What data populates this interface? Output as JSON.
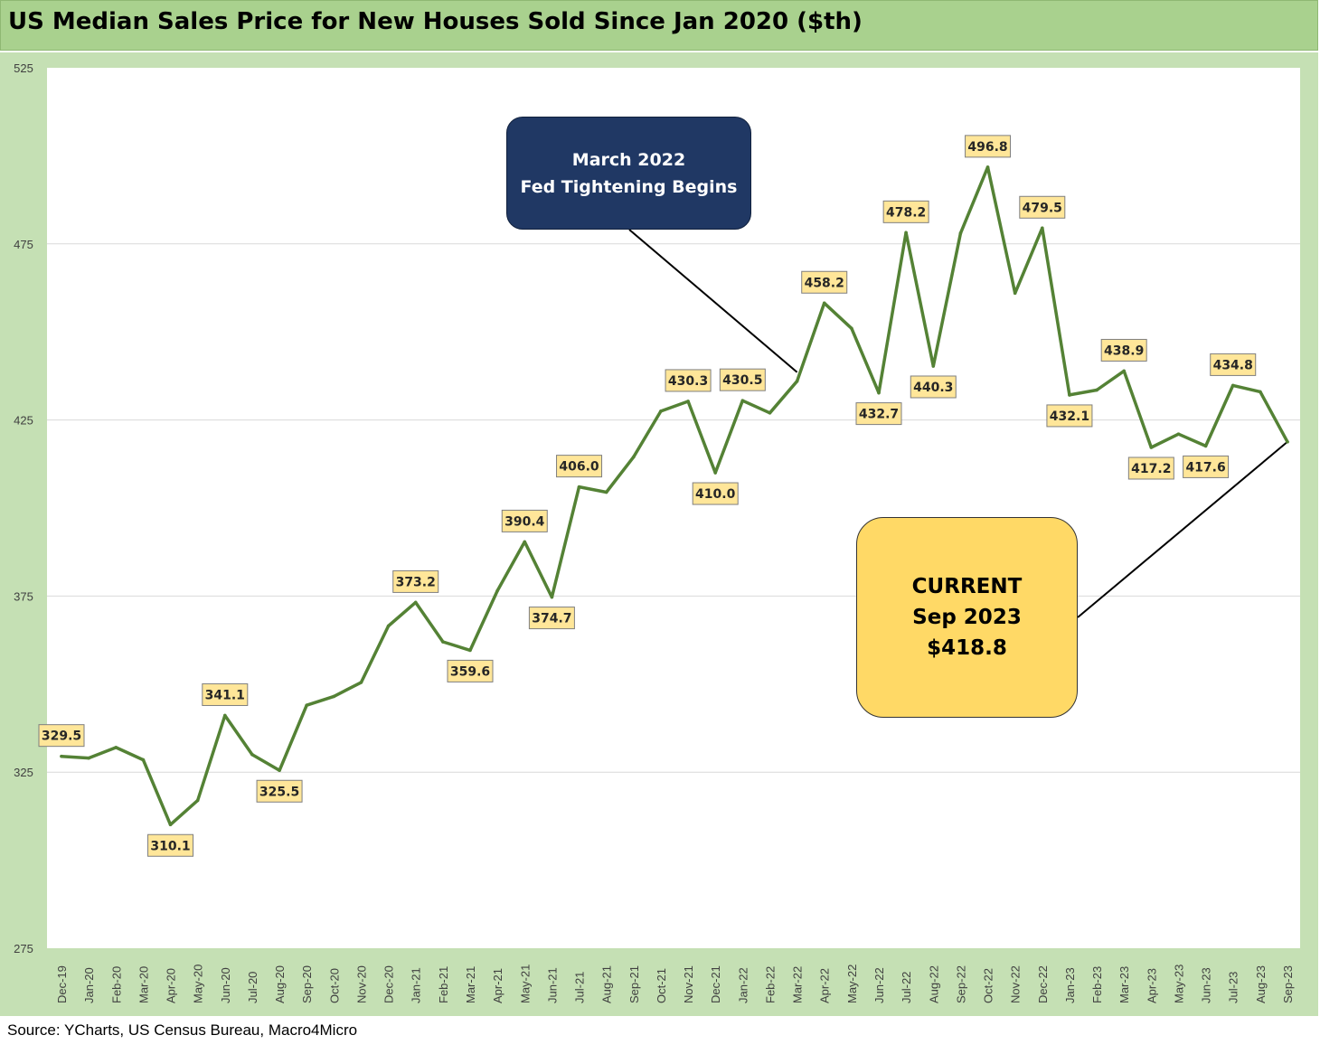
{
  "title": "US Median Sales Price for New Houses Sold Since Jan 2020 ($th)",
  "source": "Source: YCharts, US Census Bureau, Macro4Micro",
  "colors": {
    "title_bg": "#a9d18e",
    "frame_bg": "#c5e0b4",
    "line": "#548235",
    "label_bg": "#ffe699",
    "fed_box": "#203864",
    "current_box": "#ffd966"
  },
  "annotations": {
    "fed": {
      "line1": "March 2022",
      "line2": "Fed Tightening Begins",
      "points_to": "Mar-22"
    },
    "current": {
      "line1": "CURRENT",
      "line2": "Sep 2023",
      "line3": "$418.8",
      "points_to": "Sep-23"
    }
  },
  "chart_data": {
    "type": "line",
    "title": "US Median Sales Price for New Houses Sold Since Jan 2020 ($th)",
    "xlabel": "",
    "ylabel": "",
    "ylim": [
      275,
      525
    ],
    "yticks": [
      275,
      325,
      375,
      425,
      475,
      525
    ],
    "grid": true,
    "legend": "none",
    "categories": [
      "Dec-19",
      "Jan-20",
      "Feb-20",
      "Mar-20",
      "Apr-20",
      "May-20",
      "Jun-20",
      "Jul-20",
      "Aug-20",
      "Sep-20",
      "Oct-20",
      "Nov-20",
      "Dec-20",
      "Jan-21",
      "Feb-21",
      "Mar-21",
      "Apr-21",
      "May-21",
      "Jun-21",
      "Jul-21",
      "Aug-21",
      "Sep-21",
      "Oct-21",
      "Nov-21",
      "Dec-21",
      "Jan-22",
      "Feb-22",
      "Mar-22",
      "Apr-22",
      "May-22",
      "Jun-22",
      "Jul-22",
      "Aug-22",
      "Sep-22",
      "Oct-22",
      "Nov-22",
      "Dec-22",
      "Jan-23",
      "Feb-23",
      "Mar-23",
      "Apr-23",
      "May-23",
      "Jun-23",
      "Jul-23",
      "Aug-23",
      "Sep-23"
    ],
    "values": [
      329.5,
      329.0,
      332.0,
      328.5,
      310.1,
      317.0,
      341.1,
      330.0,
      325.5,
      344.0,
      346.5,
      350.5,
      366.5,
      373.2,
      362.0,
      359.6,
      376.5,
      390.4,
      374.7,
      406.0,
      404.5,
      414.5,
      427.5,
      430.3,
      410.0,
      430.5,
      427.0,
      436.0,
      458.2,
      451.0,
      432.7,
      478.2,
      440.3,
      478.0,
      496.8,
      461.0,
      479.5,
      432.1,
      433.5,
      438.9,
      417.2,
      421.0,
      417.6,
      434.8,
      433.0,
      418.8
    ],
    "data_labels": [
      {
        "index": 0,
        "text": "329.5",
        "position": "above"
      },
      {
        "index": 4,
        "text": "310.1",
        "position": "below"
      },
      {
        "index": 6,
        "text": "341.1",
        "position": "above"
      },
      {
        "index": 8,
        "text": "325.5",
        "position": "below"
      },
      {
        "index": 13,
        "text": "373.2",
        "position": "above"
      },
      {
        "index": 15,
        "text": "359.6",
        "position": "below"
      },
      {
        "index": 17,
        "text": "390.4",
        "position": "above"
      },
      {
        "index": 18,
        "text": "374.7",
        "position": "below"
      },
      {
        "index": 19,
        "text": "406.0",
        "position": "above"
      },
      {
        "index": 23,
        "text": "430.3",
        "position": "above"
      },
      {
        "index": 24,
        "text": "410.0",
        "position": "below"
      },
      {
        "index": 25,
        "text": "430.5",
        "position": "above"
      },
      {
        "index": 28,
        "text": "458.2",
        "position": "above"
      },
      {
        "index": 30,
        "text": "432.7",
        "position": "below"
      },
      {
        "index": 31,
        "text": "478.2",
        "position": "above"
      },
      {
        "index": 32,
        "text": "440.3",
        "position": "below"
      },
      {
        "index": 34,
        "text": "496.8",
        "position": "above"
      },
      {
        "index": 36,
        "text": "479.5",
        "position": "above"
      },
      {
        "index": 37,
        "text": "432.1",
        "position": "below"
      },
      {
        "index": 39,
        "text": "438.9",
        "position": "above"
      },
      {
        "index": 40,
        "text": "417.2",
        "position": "below"
      },
      {
        "index": 42,
        "text": "417.6",
        "position": "below"
      },
      {
        "index": 43,
        "text": "434.8",
        "position": "above"
      }
    ]
  }
}
